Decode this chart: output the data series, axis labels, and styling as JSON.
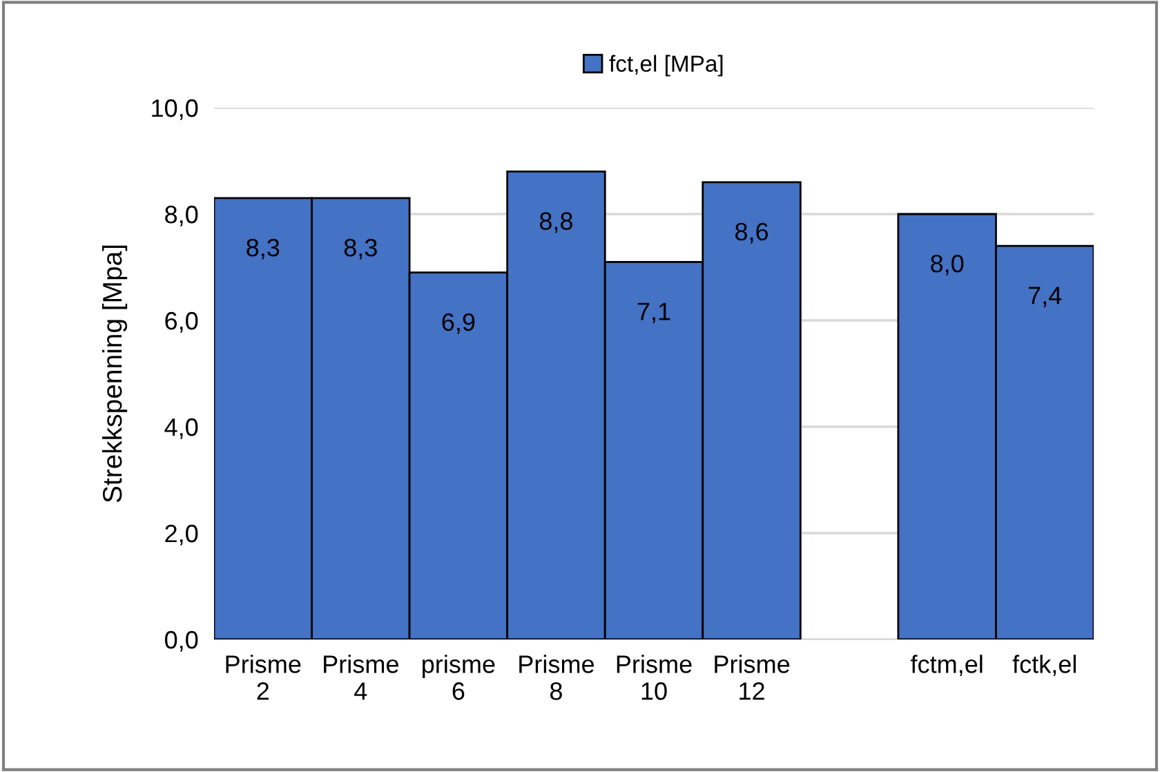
{
  "chart_data": {
    "type": "bar",
    "ylabel": "Strekkspenning [Mpa]",
    "categories": [
      "Prisme 2",
      "Prisme 4",
      "prisme 6",
      "Prisme 8",
      "Prisme 10",
      "Prisme 12",
      null,
      "fctm,el",
      "fctk,el"
    ],
    "series": [
      {
        "name": "fct,el [MPa]",
        "color": "#4472c4",
        "values": [
          8.3,
          8.3,
          6.9,
          8.8,
          7.1,
          8.6,
          null,
          8.0,
          7.4
        ],
        "value_labels": [
          "8,3",
          "8,3",
          "6,9",
          "8,8",
          "7,1",
          "8,6",
          null,
          "8,0",
          "7,4"
        ]
      }
    ],
    "ylim": [
      0,
      10
    ],
    "yticks": [
      {
        "value": 0,
        "label": "0,0"
      },
      {
        "value": 2,
        "label": "2,0"
      },
      {
        "value": 4,
        "label": "4,0"
      },
      {
        "value": 6,
        "label": "6,0"
      },
      {
        "value": 8,
        "label": "8,0"
      },
      {
        "value": 10,
        "label": "10,0"
      }
    ],
    "grid": "y",
    "legend": "top"
  }
}
